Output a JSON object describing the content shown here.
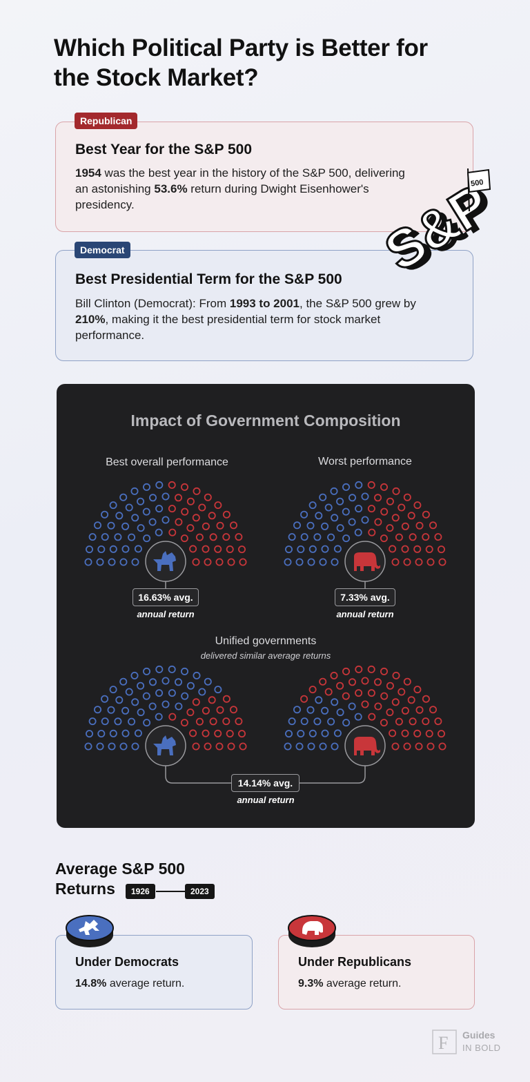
{
  "title": "Which Political Party is Better for the Stock Market?",
  "republican_card": {
    "tag": "Republican",
    "heading": "Best Year for the S&P 500",
    "year": "1954",
    "text_1": " was the best year in the history of the S&P 500, delivering an astonishing ",
    "return": "53.6%",
    "text_2": " return during Dwight Eisenhower's presidency."
  },
  "democrat_card": {
    "tag": "Democrat",
    "heading": "Best Presidential Term for the S&P 500",
    "text_1": "Bill Clinton (Democrat): From ",
    "period": "1993 to 2001",
    "text_2": ", the S&P 500 grew by ",
    "growth": "210%",
    "text_3": ", making it the best presidential term for stock market performance."
  },
  "sp_logo": {
    "text": "S&P",
    "flag": "500"
  },
  "panel": {
    "title": "Impact of Government Composition",
    "best": {
      "label": "Best overall performance",
      "avg": "16.63% avg.",
      "sub": "annual return",
      "president": "democrat",
      "icon": "donkey-icon"
    },
    "worst": {
      "label": "Worst performance",
      "avg": "7.33% avg.",
      "sub": "annual return",
      "president": "republican",
      "icon": "elephant-icon"
    },
    "unified": {
      "label": "Unified governments",
      "sub": "delivered similar average returns",
      "avg": "14.14% avg.",
      "avg_sub": "annual return"
    },
    "colors": {
      "democrat": "#4a6fbf",
      "republican": "#c8363a"
    }
  },
  "avg_section": {
    "title_line1": "Average S&P 500",
    "title_line2": "Returns",
    "year_start": "1926",
    "year_end": "2023"
  },
  "results": {
    "democrats": {
      "heading": "Under Democrats",
      "value": "14.8%",
      "text": " average return."
    },
    "republicans": {
      "heading": "Under Republicans",
      "value": "9.3%",
      "text": " average return."
    }
  },
  "brand": {
    "name": "Guides",
    "sub": "IN BOLD"
  }
}
